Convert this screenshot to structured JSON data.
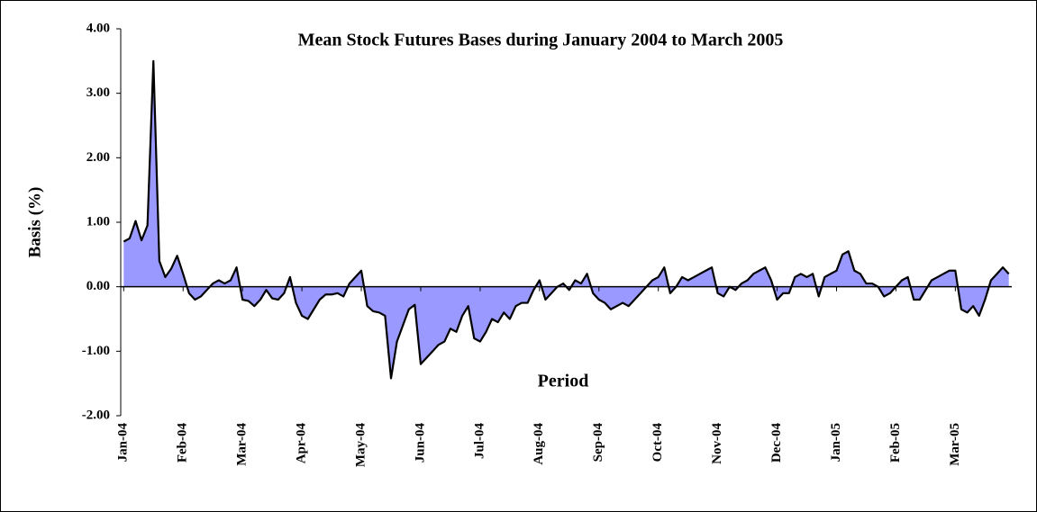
{
  "chart_data": {
    "type": "area",
    "title": "Mean Stock Futures Bases during January 2004 to March 2005",
    "ylabel": "Basis (%)",
    "annotation": "Period",
    "color": "#9999ff",
    "line_color": "#000000",
    "ylim": [
      -2,
      4
    ],
    "yticks": [
      {
        "value": -2,
        "label": "-2.00"
      },
      {
        "value": -1,
        "label": "-1.00"
      },
      {
        "value": 0,
        "label": "0.00"
      },
      {
        "value": 1,
        "label": "1.00"
      },
      {
        "value": 2,
        "label": "2.00"
      },
      {
        "value": 3,
        "label": "3.00"
      },
      {
        "value": 4,
        "label": "4.00"
      }
    ],
    "categories": [
      "Jan-04",
      null,
      null,
      null,
      null,
      null,
      null,
      null,
      null,
      null,
      "Feb-04",
      null,
      null,
      null,
      null,
      null,
      null,
      null,
      null,
      null,
      "Mar-04",
      null,
      null,
      null,
      null,
      null,
      null,
      null,
      null,
      null,
      "Apr-04",
      null,
      null,
      null,
      null,
      null,
      null,
      null,
      null,
      null,
      "May-04",
      null,
      null,
      null,
      null,
      null,
      null,
      null,
      null,
      null,
      "Jun-04",
      null,
      null,
      null,
      null,
      null,
      null,
      null,
      null,
      null,
      "Jul-04",
      null,
      null,
      null,
      null,
      null,
      null,
      null,
      null,
      null,
      "Aug-04",
      null,
      null,
      null,
      null,
      null,
      null,
      null,
      null,
      null,
      "Sep-04",
      null,
      null,
      null,
      null,
      null,
      null,
      null,
      null,
      null,
      "Oct-04",
      null,
      null,
      null,
      null,
      null,
      null,
      null,
      null,
      null,
      "Nov-04",
      null,
      null,
      null,
      null,
      null,
      null,
      null,
      null,
      null,
      "Dec-04",
      null,
      null,
      null,
      null,
      null,
      null,
      null,
      null,
      null,
      "Jan-05",
      null,
      null,
      null,
      null,
      null,
      null,
      null,
      null,
      null,
      "Feb-05",
      null,
      null,
      null,
      null,
      null,
      null,
      null,
      null,
      null,
      "Mar-05",
      null,
      null,
      null,
      null,
      null,
      null,
      null,
      null,
      null
    ],
    "values": [
      0.7,
      0.75,
      1.02,
      0.72,
      0.95,
      3.5,
      0.4,
      0.15,
      0.28,
      0.48,
      0.2,
      -0.1,
      -0.2,
      -0.15,
      -0.05,
      0.05,
      0.1,
      0.05,
      0.1,
      0.3,
      -0.2,
      -0.22,
      -0.3,
      -0.2,
      -0.05,
      -0.18,
      -0.2,
      -0.1,
      0.15,
      -0.25,
      -0.45,
      -0.5,
      -0.35,
      -0.2,
      -0.12,
      -0.12,
      -0.1,
      -0.15,
      0.05,
      0.15,
      0.25,
      -0.3,
      -0.38,
      -0.4,
      -0.45,
      -1.42,
      -0.85,
      -0.6,
      -0.35,
      -0.28,
      -1.2,
      -1.1,
      -1.0,
      -0.9,
      -0.85,
      -0.65,
      -0.7,
      -0.45,
      -0.3,
      -0.8,
      -0.85,
      -0.7,
      -0.5,
      -0.55,
      -0.4,
      -0.5,
      -0.3,
      -0.25,
      -0.25,
      -0.05,
      0.1,
      -0.2,
      -0.1,
      0.0,
      0.05,
      -0.05,
      0.1,
      0.05,
      0.2,
      -0.1,
      -0.2,
      -0.25,
      -0.35,
      -0.3,
      -0.25,
      -0.3,
      -0.2,
      -0.1,
      0.0,
      0.1,
      0.15,
      0.3,
      -0.1,
      0.0,
      0.15,
      0.1,
      0.15,
      0.2,
      0.25,
      0.3,
      -0.1,
      -0.15,
      0.0,
      -0.05,
      0.05,
      0.1,
      0.2,
      0.25,
      0.3,
      0.1,
      -0.2,
      -0.1,
      -0.1,
      0.15,
      0.2,
      0.15,
      0.2,
      -0.15,
      0.15,
      0.2,
      0.25,
      0.5,
      0.55,
      0.25,
      0.2,
      0.05,
      0.05,
      0.0,
      -0.15,
      -0.1,
      0.0,
      0.1,
      0.15,
      -0.2,
      -0.2,
      -0.05,
      0.1,
      0.15,
      0.2,
      0.25,
      0.25,
      -0.35,
      -0.4,
      -0.3,
      -0.45,
      -0.2,
      0.1,
      0.2,
      0.3,
      0.2
    ]
  }
}
